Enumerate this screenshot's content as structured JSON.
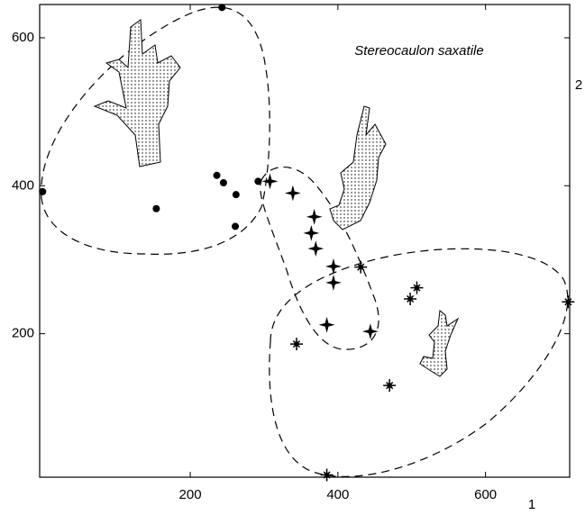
{
  "chart_data": {
    "type": "scatter",
    "title": "Stereocaulon saxatile",
    "x_label": "1",
    "y_label": "2",
    "xlim": [
      -4,
      714
    ],
    "ylim": [
      6,
      645
    ],
    "xticks": [
      200,
      400,
      600
    ],
    "yticks": [
      200,
      400,
      600
    ],
    "series": [
      {
        "marker": "circle",
        "color": "#000000",
        "x": [
          0,
          154,
          236,
          245,
          262,
          261,
          292,
          243
        ],
        "values": [
          392,
          369,
          414,
          404,
          388,
          345,
          406,
          641
        ]
      },
      {
        "marker": "plus-star",
        "color": "#000000",
        "x": [
          308,
          339,
          368,
          364,
          370,
          394,
          394,
          385,
          444
        ],
        "values": [
          406,
          390,
          358,
          336,
          315,
          291,
          269,
          212,
          203
        ]
      },
      {
        "marker": "asterisk",
        "color": "#000000",
        "x": [
          431,
          507,
          498,
          712,
          344,
          470,
          385
        ],
        "values": [
          290,
          262,
          247,
          243,
          186,
          130,
          9
        ]
      }
    ]
  }
}
